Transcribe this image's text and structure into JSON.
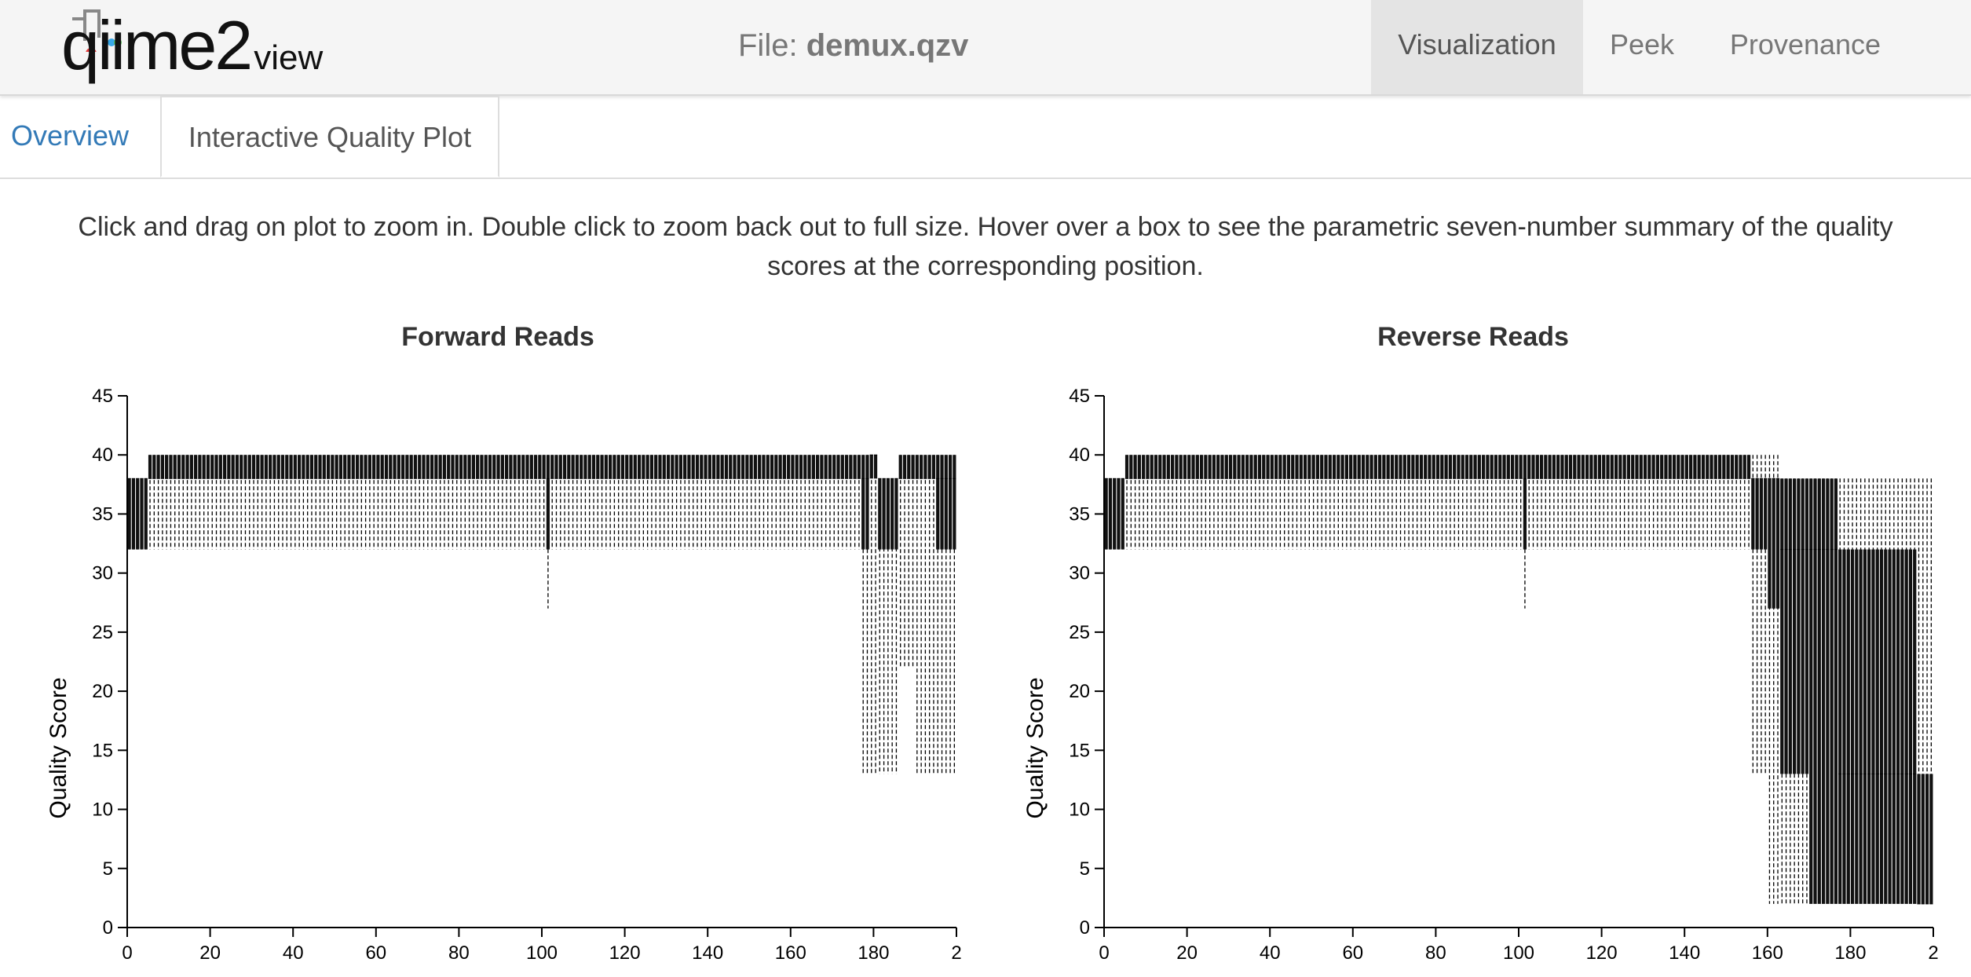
{
  "app": {
    "logo_text": "qiime2",
    "logo_suffix": "view",
    "file_prefix": "File:",
    "file_name": "demux.qzv",
    "nav_tabs": [
      {
        "label": "Visualization",
        "active": true
      },
      {
        "label": "Peek",
        "active": false
      },
      {
        "label": "Provenance",
        "active": false
      }
    ]
  },
  "subtabs": [
    {
      "label": "Overview",
      "active": false
    },
    {
      "label": "Interactive Quality Plot",
      "active": true
    }
  ],
  "instructions": "Click and drag on plot to zoom in. Double click to zoom back out to full size. Hover over a box to see the parametric seven-number summary of the quality scores at the corresponding position.",
  "colors": {
    "navbar_bg": "#f5f5f5",
    "link": "#337ab7",
    "box_fill": "#111111"
  },
  "chart_data": [
    {
      "type": "box",
      "title": "Forward Reads",
      "ylabel": "Quality Score",
      "xlabel": "",
      "xlim": [
        0,
        200
      ],
      "ylim": [
        0,
        45
      ],
      "x_ticks": [
        "0",
        "20",
        "40",
        "60",
        "80",
        "100",
        "120",
        "140",
        "160",
        "180",
        "2"
      ],
      "y_ticks": [
        "0",
        "5",
        "10",
        "15",
        "20",
        "25",
        "30",
        "35",
        "40",
        "45"
      ],
      "segments": [
        {
          "from": 1,
          "to": 5,
          "q1": 32,
          "median": 38,
          "q3": 38,
          "lower": 32,
          "upper": 38
        },
        {
          "from": 6,
          "to": 101,
          "q1": 38,
          "median": 38,
          "q3": 40,
          "lower": 32,
          "upper": 40
        },
        {
          "from": 102,
          "to": 102,
          "q1": 32,
          "median": 38,
          "q3": 40,
          "lower": 27,
          "upper": 40
        },
        {
          "from": 103,
          "to": 177,
          "q1": 38,
          "median": 38,
          "q3": 40,
          "lower": 32,
          "upper": 40
        },
        {
          "from": 178,
          "to": 179,
          "q1": 32,
          "median": 38,
          "q3": 40,
          "lower": 13,
          "upper": 40
        },
        {
          "from": 180,
          "to": 181,
          "q1": 38,
          "median": 40,
          "q3": 40,
          "lower": 13,
          "upper": 40
        },
        {
          "from": 182,
          "to": 186,
          "q1": 32,
          "median": 38,
          "q3": 38,
          "lower": 13,
          "upper": 38
        },
        {
          "from": 187,
          "to": 190,
          "q1": 38,
          "median": 38,
          "q3": 40,
          "lower": 22,
          "upper": 40
        },
        {
          "from": 191,
          "to": 195,
          "q1": 38,
          "median": 38,
          "q3": 40,
          "lower": 13,
          "upper": 40
        },
        {
          "from": 196,
          "to": 200,
          "q1": 32,
          "median": 38,
          "q3": 40,
          "lower": 13,
          "upper": 40
        }
      ]
    },
    {
      "type": "box",
      "title": "Reverse Reads",
      "ylabel": "Quality Score",
      "xlabel": "",
      "xlim": [
        0,
        200
      ],
      "ylim": [
        0,
        45
      ],
      "x_ticks": [
        "0",
        "20",
        "40",
        "60",
        "80",
        "100",
        "120",
        "140",
        "160",
        "180",
        "2"
      ],
      "y_ticks": [
        "0",
        "5",
        "10",
        "15",
        "20",
        "25",
        "30",
        "35",
        "40",
        "45"
      ],
      "segments": [
        {
          "from": 1,
          "to": 5,
          "q1": 32,
          "median": 38,
          "q3": 38,
          "lower": 32,
          "upper": 38
        },
        {
          "from": 6,
          "to": 101,
          "q1": 38,
          "median": 38,
          "q3": 40,
          "lower": 32,
          "upper": 40
        },
        {
          "from": 102,
          "to": 102,
          "q1": 32,
          "median": 38,
          "q3": 40,
          "lower": 27,
          "upper": 40
        },
        {
          "from": 103,
          "to": 156,
          "q1": 38,
          "median": 38,
          "q3": 40,
          "lower": 32,
          "upper": 40
        },
        {
          "from": 157,
          "to": 160,
          "q1": 32,
          "median": 38,
          "q3": 38,
          "lower": 13,
          "upper": 40
        },
        {
          "from": 161,
          "to": 163,
          "q1": 27,
          "median": 38,
          "q3": 38,
          "lower": 2,
          "upper": 40
        },
        {
          "from": 164,
          "to": 170,
          "q1": 13,
          "median": 32,
          "q3": 38,
          "lower": 2,
          "upper": 38
        },
        {
          "from": 171,
          "to": 177,
          "q1": 2,
          "median": 32,
          "q3": 38,
          "lower": 2,
          "upper": 38
        },
        {
          "from": 178,
          "to": 196,
          "q1": 2,
          "median": 13,
          "q3": 32,
          "lower": 2,
          "upper": 38
        },
        {
          "from": 197,
          "to": 200,
          "q1": 2,
          "median": 2,
          "q3": 13,
          "lower": 2,
          "upper": 38
        }
      ]
    }
  ]
}
